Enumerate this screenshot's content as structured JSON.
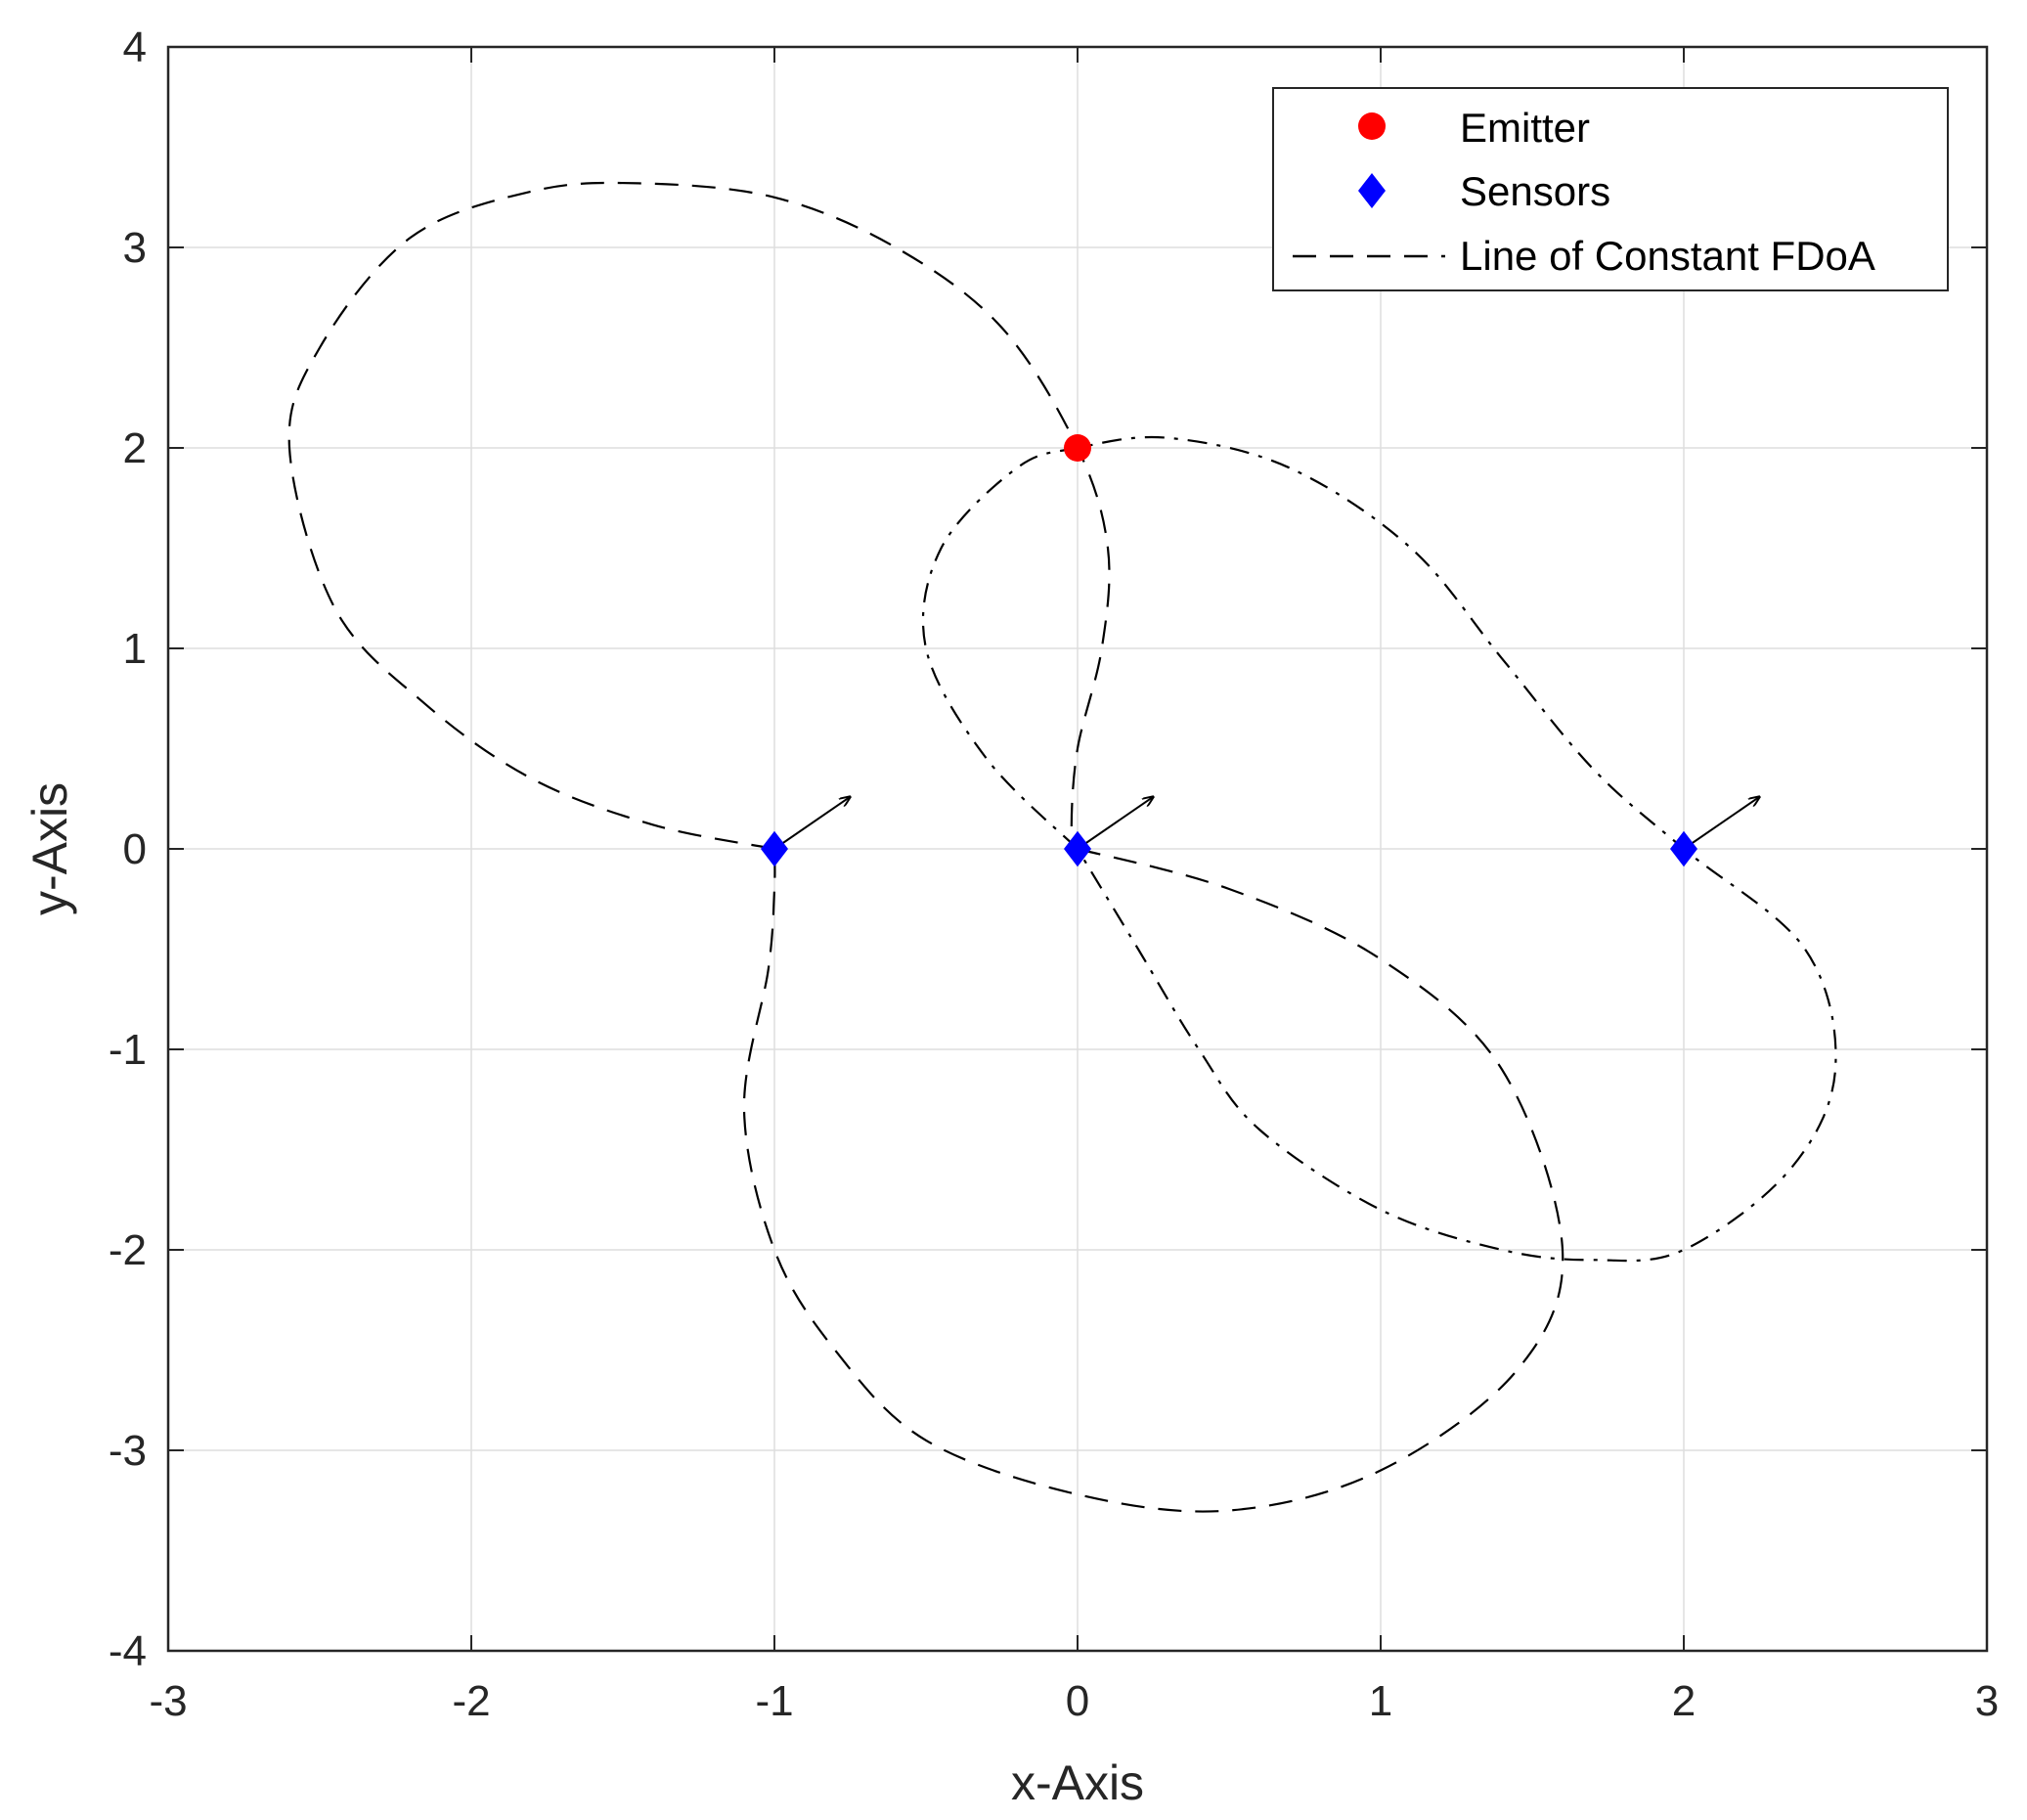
{
  "chart_data": {
    "type": "scatter",
    "xlabel": "x-Axis",
    "ylabel": "y-Axis",
    "xlim": [
      -3,
      3
    ],
    "ylim": [
      -4,
      4
    ],
    "xticks": [
      -3,
      -2,
      -1,
      0,
      1,
      2,
      3
    ],
    "yticks": [
      -4,
      -3,
      -2,
      -1,
      0,
      1,
      2,
      3,
      4
    ],
    "xtick_labels": [
      "-3",
      "-2",
      "-1",
      "0",
      "1",
      "2",
      "3"
    ],
    "ytick_labels": [
      "-4",
      "-3",
      "-2",
      "-1",
      "0",
      "1",
      "2",
      "3",
      "4"
    ],
    "grid": true,
    "legend_position": "top-right",
    "legend": {
      "emitter": "Emitter",
      "sensors": "Sensors",
      "fdoa": "Line of Constant FDoA"
    },
    "emitter": {
      "x": 0,
      "y": 2,
      "color": "#ff0000"
    },
    "sensors": {
      "color": "#0000ff",
      "points": [
        {
          "x": -1,
          "y": 0
        },
        {
          "x": 0,
          "y": 0
        },
        {
          "x": 2,
          "y": 0
        }
      ]
    },
    "velocity_arrows": [
      {
        "from": [
          -1,
          0
        ],
        "to": [
          -0.75,
          0.26
        ]
      },
      {
        "from": [
          0,
          0
        ],
        "to": [
          0.25,
          0.26
        ]
      },
      {
        "from": [
          2,
          0
        ],
        "to": [
          2.25,
          0.26
        ]
      }
    ],
    "series": [
      {
        "style": "dashed",
        "color": "#000000",
        "points": [
          [
            -1,
            0
          ],
          [
            -1.4,
            0.12
          ],
          [
            -1.8,
            0.35
          ],
          [
            -2.15,
            0.72
          ],
          [
            -2.45,
            1.2
          ],
          [
            -2.6,
            2.0
          ],
          [
            -2.5,
            2.5
          ],
          [
            -2.2,
            3.05
          ],
          [
            -1.8,
            3.28
          ],
          [
            -1.45,
            3.32
          ],
          [
            -1.0,
            3.25
          ],
          [
            -0.6,
            3.0
          ],
          [
            -0.25,
            2.6
          ],
          [
            0,
            2.0
          ],
          [
            0.1,
            1.5
          ],
          [
            0.08,
            1.0
          ],
          [
            0.0,
            0.5
          ],
          [
            -0.02,
            0.1
          ],
          [
            0,
            0
          ]
        ]
      },
      {
        "style": "dashdot",
        "color": "#000000",
        "points": [
          [
            0,
            0
          ],
          [
            -0.3,
            0.45
          ],
          [
            -0.5,
            1.0
          ],
          [
            -0.45,
            1.5
          ],
          [
            -0.2,
            1.9
          ],
          [
            0,
            2.0
          ],
          [
            0.3,
            2.05
          ],
          [
            0.7,
            1.9
          ],
          [
            1.1,
            1.5
          ],
          [
            1.4,
            0.95
          ],
          [
            1.7,
            0.4
          ],
          [
            2.0,
            0.0
          ],
          [
            2.4,
            -0.5
          ],
          [
            2.5,
            -1.1
          ],
          [
            2.35,
            -1.6
          ],
          [
            2.0,
            -2.0
          ],
          [
            1.7,
            -2.05
          ],
          [
            1.4,
            -2.0
          ],
          [
            1.0,
            -1.8
          ],
          [
            0.6,
            -1.4
          ],
          [
            0.4,
            -1.0
          ],
          [
            0.2,
            -0.5
          ],
          [
            0,
            0
          ]
        ]
      },
      {
        "style": "dashed",
        "color": "#000000",
        "points": [
          [
            0,
            0
          ],
          [
            0.5,
            -0.2
          ],
          [
            1.0,
            -0.55
          ],
          [
            1.4,
            -1.1
          ],
          [
            1.6,
            -2.0
          ],
          [
            1.45,
            -2.6
          ],
          [
            1.0,
            -3.1
          ],
          [
            0.5,
            -3.3
          ],
          [
            0.0,
            -3.22
          ],
          [
            -0.5,
            -2.95
          ],
          [
            -0.8,
            -2.5
          ],
          [
            -1.0,
            -2.0
          ],
          [
            -1.1,
            -1.3
          ],
          [
            -1.02,
            -0.6
          ],
          [
            -1,
            -0.2
          ],
          [
            -1,
            0
          ]
        ]
      }
    ]
  }
}
